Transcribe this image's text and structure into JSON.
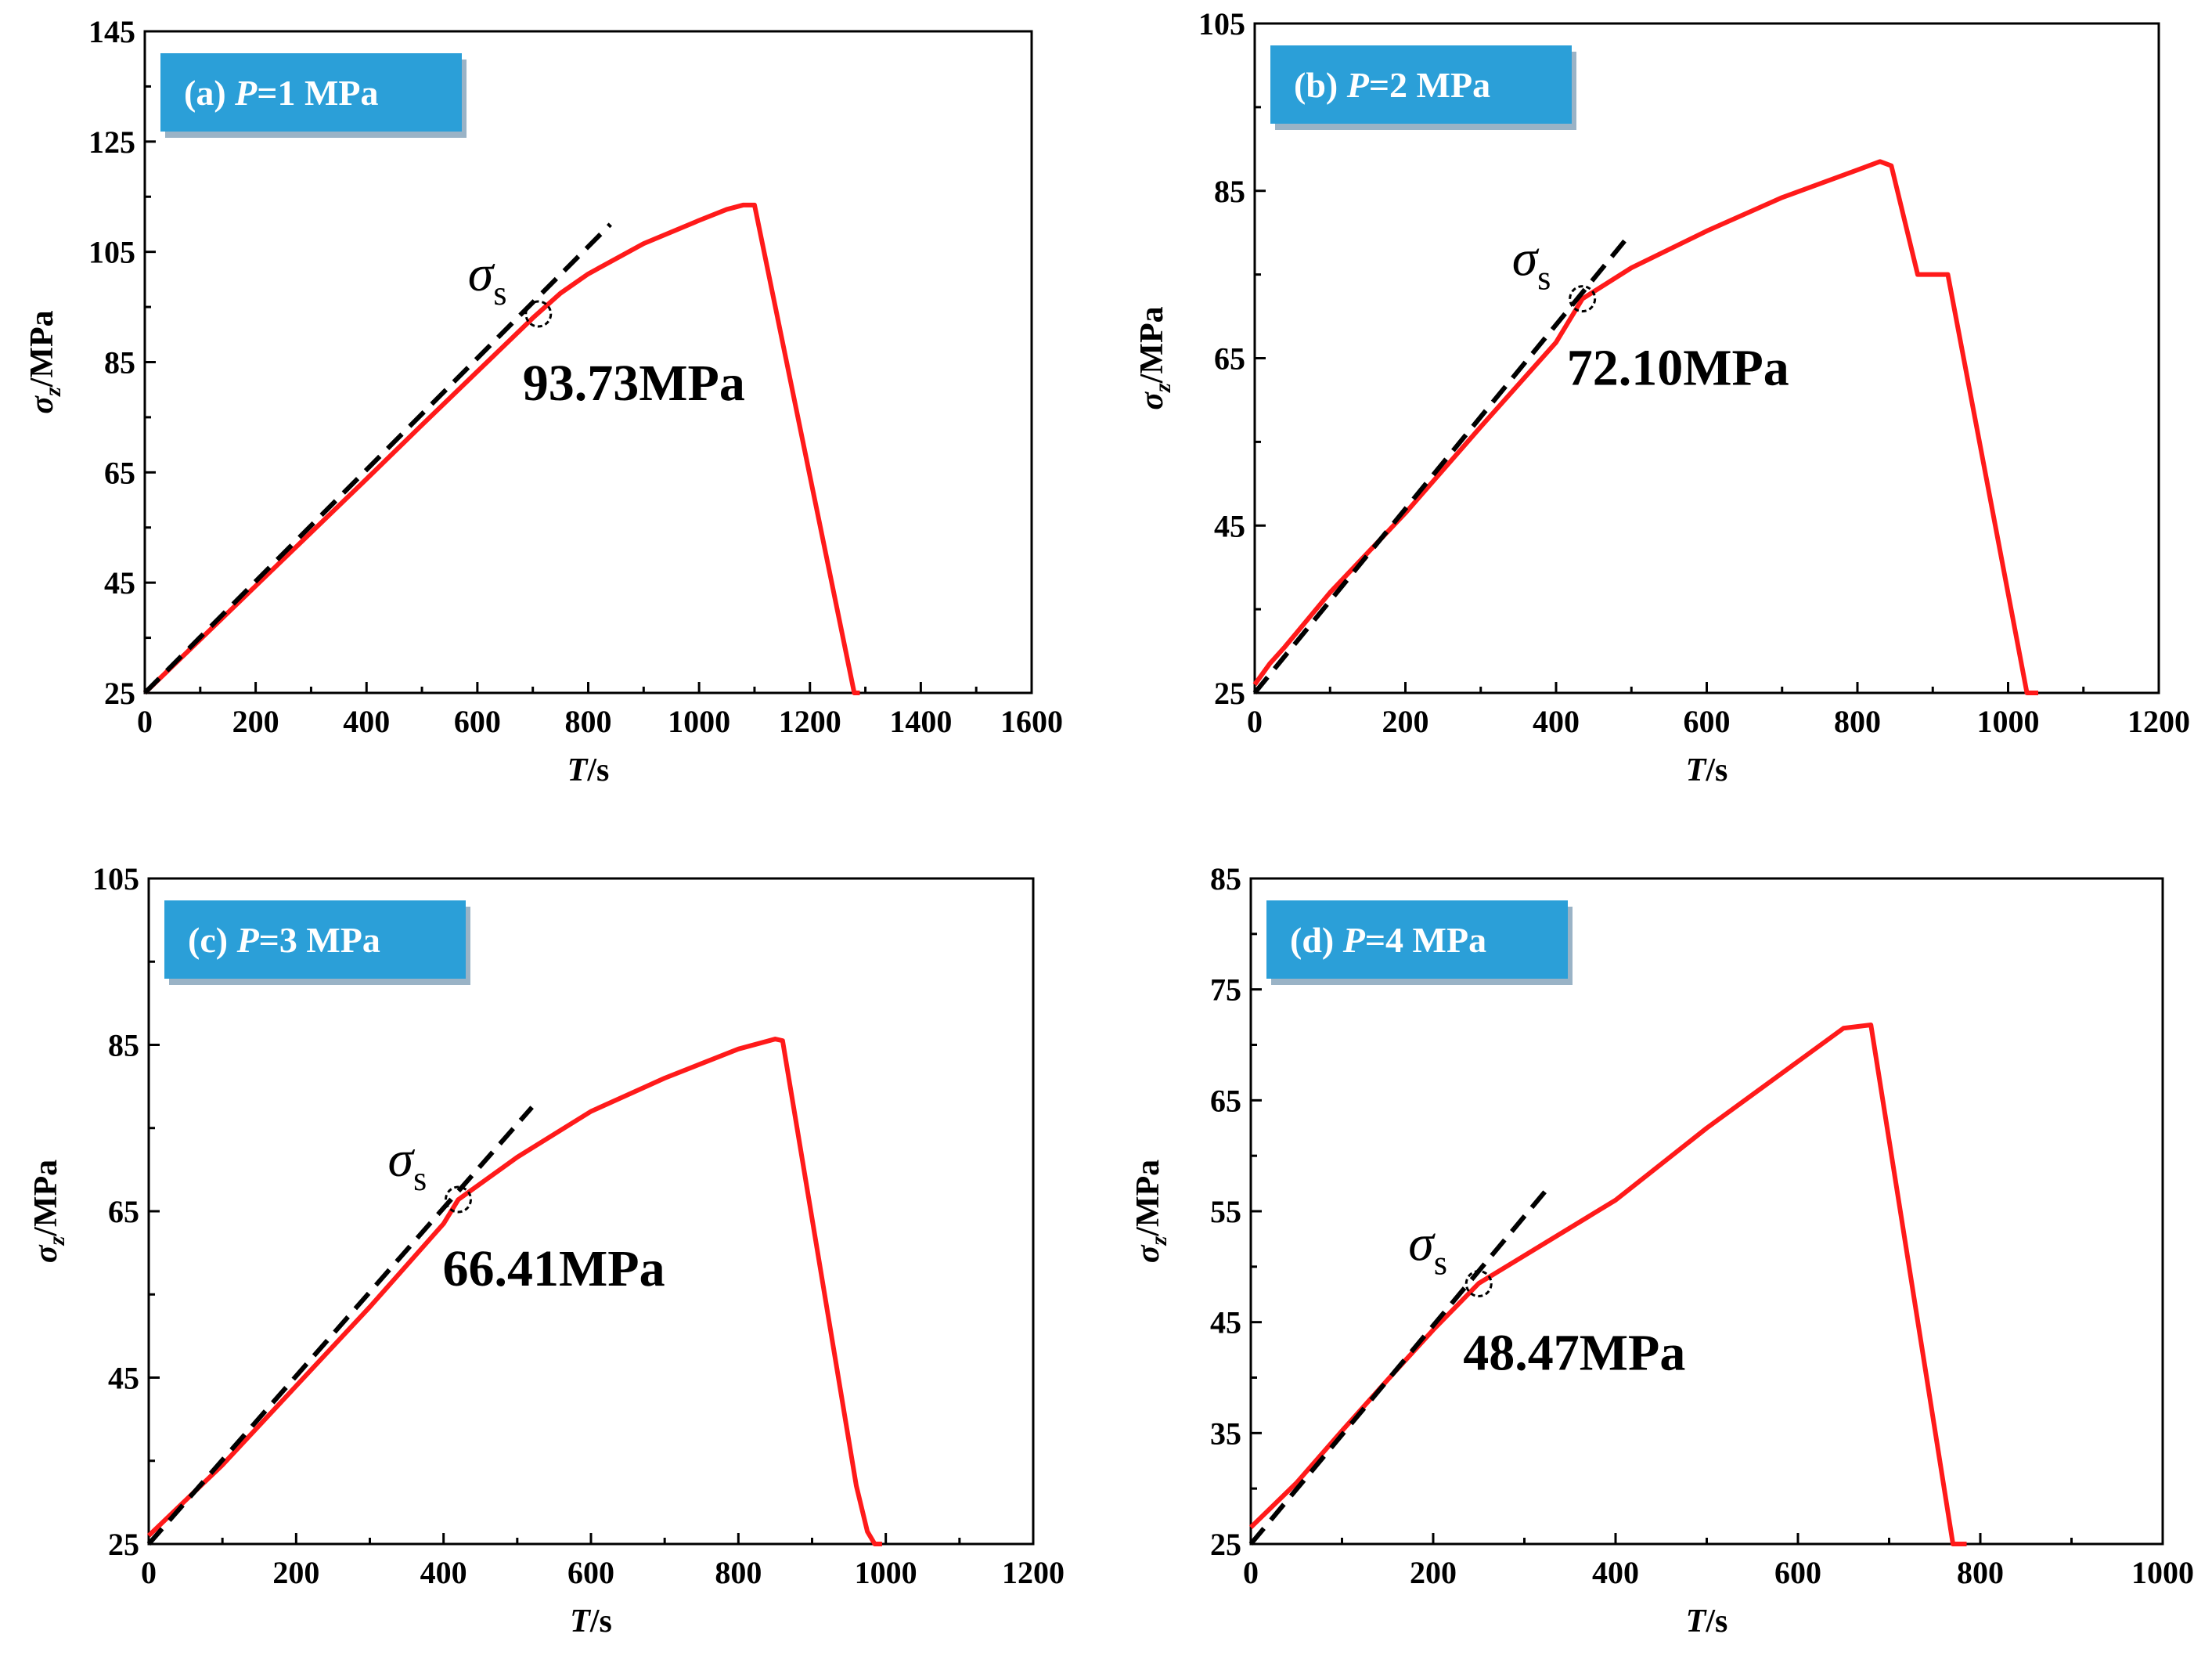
{
  "chart_data": [
    {
      "id": "a",
      "type": "line",
      "panel_label": "(a)",
      "condition": "P=1 MPa",
      "badge_text_prefix": "(a) ",
      "badge_text_var": "P",
      "badge_text_suffix": "=1 MPa",
      "xlabel_var": "T",
      "xlabel_unit": "/s",
      "ylabel_var": "σ",
      "ylabel_sub": "z",
      "ylabel_unit": "/MPa",
      "xlim": [
        0,
        1600
      ],
      "ylim": [
        25,
        145
      ],
      "xticks": [
        0,
        200,
        400,
        600,
        800,
        1000,
        1200,
        1400,
        1600
      ],
      "yticks": [
        25,
        45,
        65,
        85,
        105,
        125,
        145
      ],
      "series": [
        {
          "x": [
            0,
            100,
            200,
            300,
            400,
            500,
            600,
            700,
            750,
            800,
            900,
            1000,
            1050,
            1080,
            1100,
            1280,
            1290
          ],
          "y": [
            25,
            34.7,
            44.4,
            54.1,
            63.8,
            73.6,
            83.3,
            93.0,
            97.5,
            101.0,
            106.5,
            110.7,
            112.7,
            113.5,
            113.5,
            25,
            25
          ]
        }
      ],
      "fit_line": {
        "x": [
          0,
          840
        ],
        "y": [
          25,
          110
        ]
      },
      "yield": {
        "x": 710,
        "y": 93.73,
        "label": "93.73MPa",
        "symbol": "σ",
        "symbol_sub": "s"
      }
    },
    {
      "id": "b",
      "type": "line",
      "panel_label": "(b)",
      "condition": "P=2 MPa",
      "badge_text_prefix": "(b) ",
      "badge_text_var": "P",
      "badge_text_suffix": "=2 MPa",
      "xlabel_var": "T",
      "xlabel_unit": "/s",
      "ylabel_var": "σ",
      "ylabel_sub": "z",
      "ylabel_unit": "/MPa",
      "xlim": [
        0,
        1200
      ],
      "ylim": [
        25,
        105
      ],
      "xticks": [
        0,
        200,
        400,
        600,
        800,
        1000,
        1200
      ],
      "yticks": [
        25,
        45,
        65,
        85,
        105
      ],
      "series": [
        {
          "x": [
            0,
            20,
            40,
            100,
            200,
            300,
            400,
            435,
            500,
            600,
            700,
            800,
            830,
            845,
            880,
            920,
            1025,
            1040
          ],
          "y": [
            26,
            28.5,
            30.5,
            37,
            46.5,
            56.8,
            66.9,
            72.1,
            75.8,
            80.2,
            84.2,
            87.5,
            88.5,
            88.0,
            75,
            75,
            25,
            25
          ]
        }
      ],
      "fit_line": {
        "x": [
          0,
          500
        ],
        "y": [
          25,
          80
        ]
      },
      "yield": {
        "x": 435,
        "y": 72.1,
        "label": "72.10MPa",
        "symbol": "σ",
        "symbol_sub": "s"
      }
    },
    {
      "id": "c",
      "type": "line",
      "panel_label": "(c)",
      "condition": "P=3 MPa",
      "badge_text_prefix": "(c) ",
      "badge_text_var": "P",
      "badge_text_suffix": "=3 MPa",
      "xlabel_var": "T",
      "xlabel_unit": "/s",
      "ylabel_var": "σ",
      "ylabel_sub": "z",
      "ylabel_unit": "/MPa",
      "xlim": [
        0,
        1200
      ],
      "ylim": [
        25,
        105
      ],
      "xticks": [
        0,
        200,
        400,
        600,
        800,
        1000,
        1200
      ],
      "yticks": [
        25,
        45,
        65,
        85,
        105
      ],
      "series": [
        {
          "x": [
            0,
            100,
            200,
            300,
            400,
            420,
            500,
            600,
            700,
            800,
            850,
            860,
            960,
            975,
            985,
            995
          ],
          "y": [
            26,
            34.5,
            44,
            53.5,
            63.5,
            66.4,
            71.5,
            77,
            81,
            84.5,
            85.7,
            85.5,
            32,
            26.5,
            25,
            25
          ]
        }
      ],
      "fit_line": {
        "x": [
          0,
          520
        ],
        "y": [
          25,
          77.5
        ]
      },
      "yield": {
        "x": 420,
        "y": 66.41,
        "label": "66.41MPa",
        "symbol": "σ",
        "symbol_sub": "s"
      }
    },
    {
      "id": "d",
      "type": "line",
      "panel_label": "(d)",
      "condition": "P=4 MPa",
      "badge_text_prefix": "(d) ",
      "badge_text_var": "P",
      "badge_text_suffix": "=4 MPa",
      "xlabel_var": "T",
      "xlabel_unit": "/s",
      "ylabel_var": "σ",
      "ylabel_sub": "z",
      "ylabel_unit": "/MPa",
      "xlim": [
        0,
        1000
      ],
      "ylim": [
        25,
        85
      ],
      "xticks": [
        0,
        200,
        400,
        600,
        800,
        1000
      ],
      "yticks": [
        25,
        35,
        45,
        55,
        65,
        75,
        85
      ],
      "series": [
        {
          "x": [
            0,
            50,
            100,
            150,
            200,
            250,
            300,
            400,
            500,
            600,
            650,
            680,
            770,
            785
          ],
          "y": [
            26.5,
            30.5,
            35.2,
            39.8,
            44.3,
            48.5,
            51,
            56,
            62.5,
            68.5,
            71.5,
            71.8,
            25,
            25
          ]
        }
      ],
      "fit_line": {
        "x": [
          0,
          325
        ],
        "y": [
          25,
          57
        ]
      },
      "yield": {
        "x": 250,
        "y": 48.47,
        "label": "48.47MPa",
        "symbol": "σ",
        "symbol_sub": "s"
      }
    }
  ]
}
